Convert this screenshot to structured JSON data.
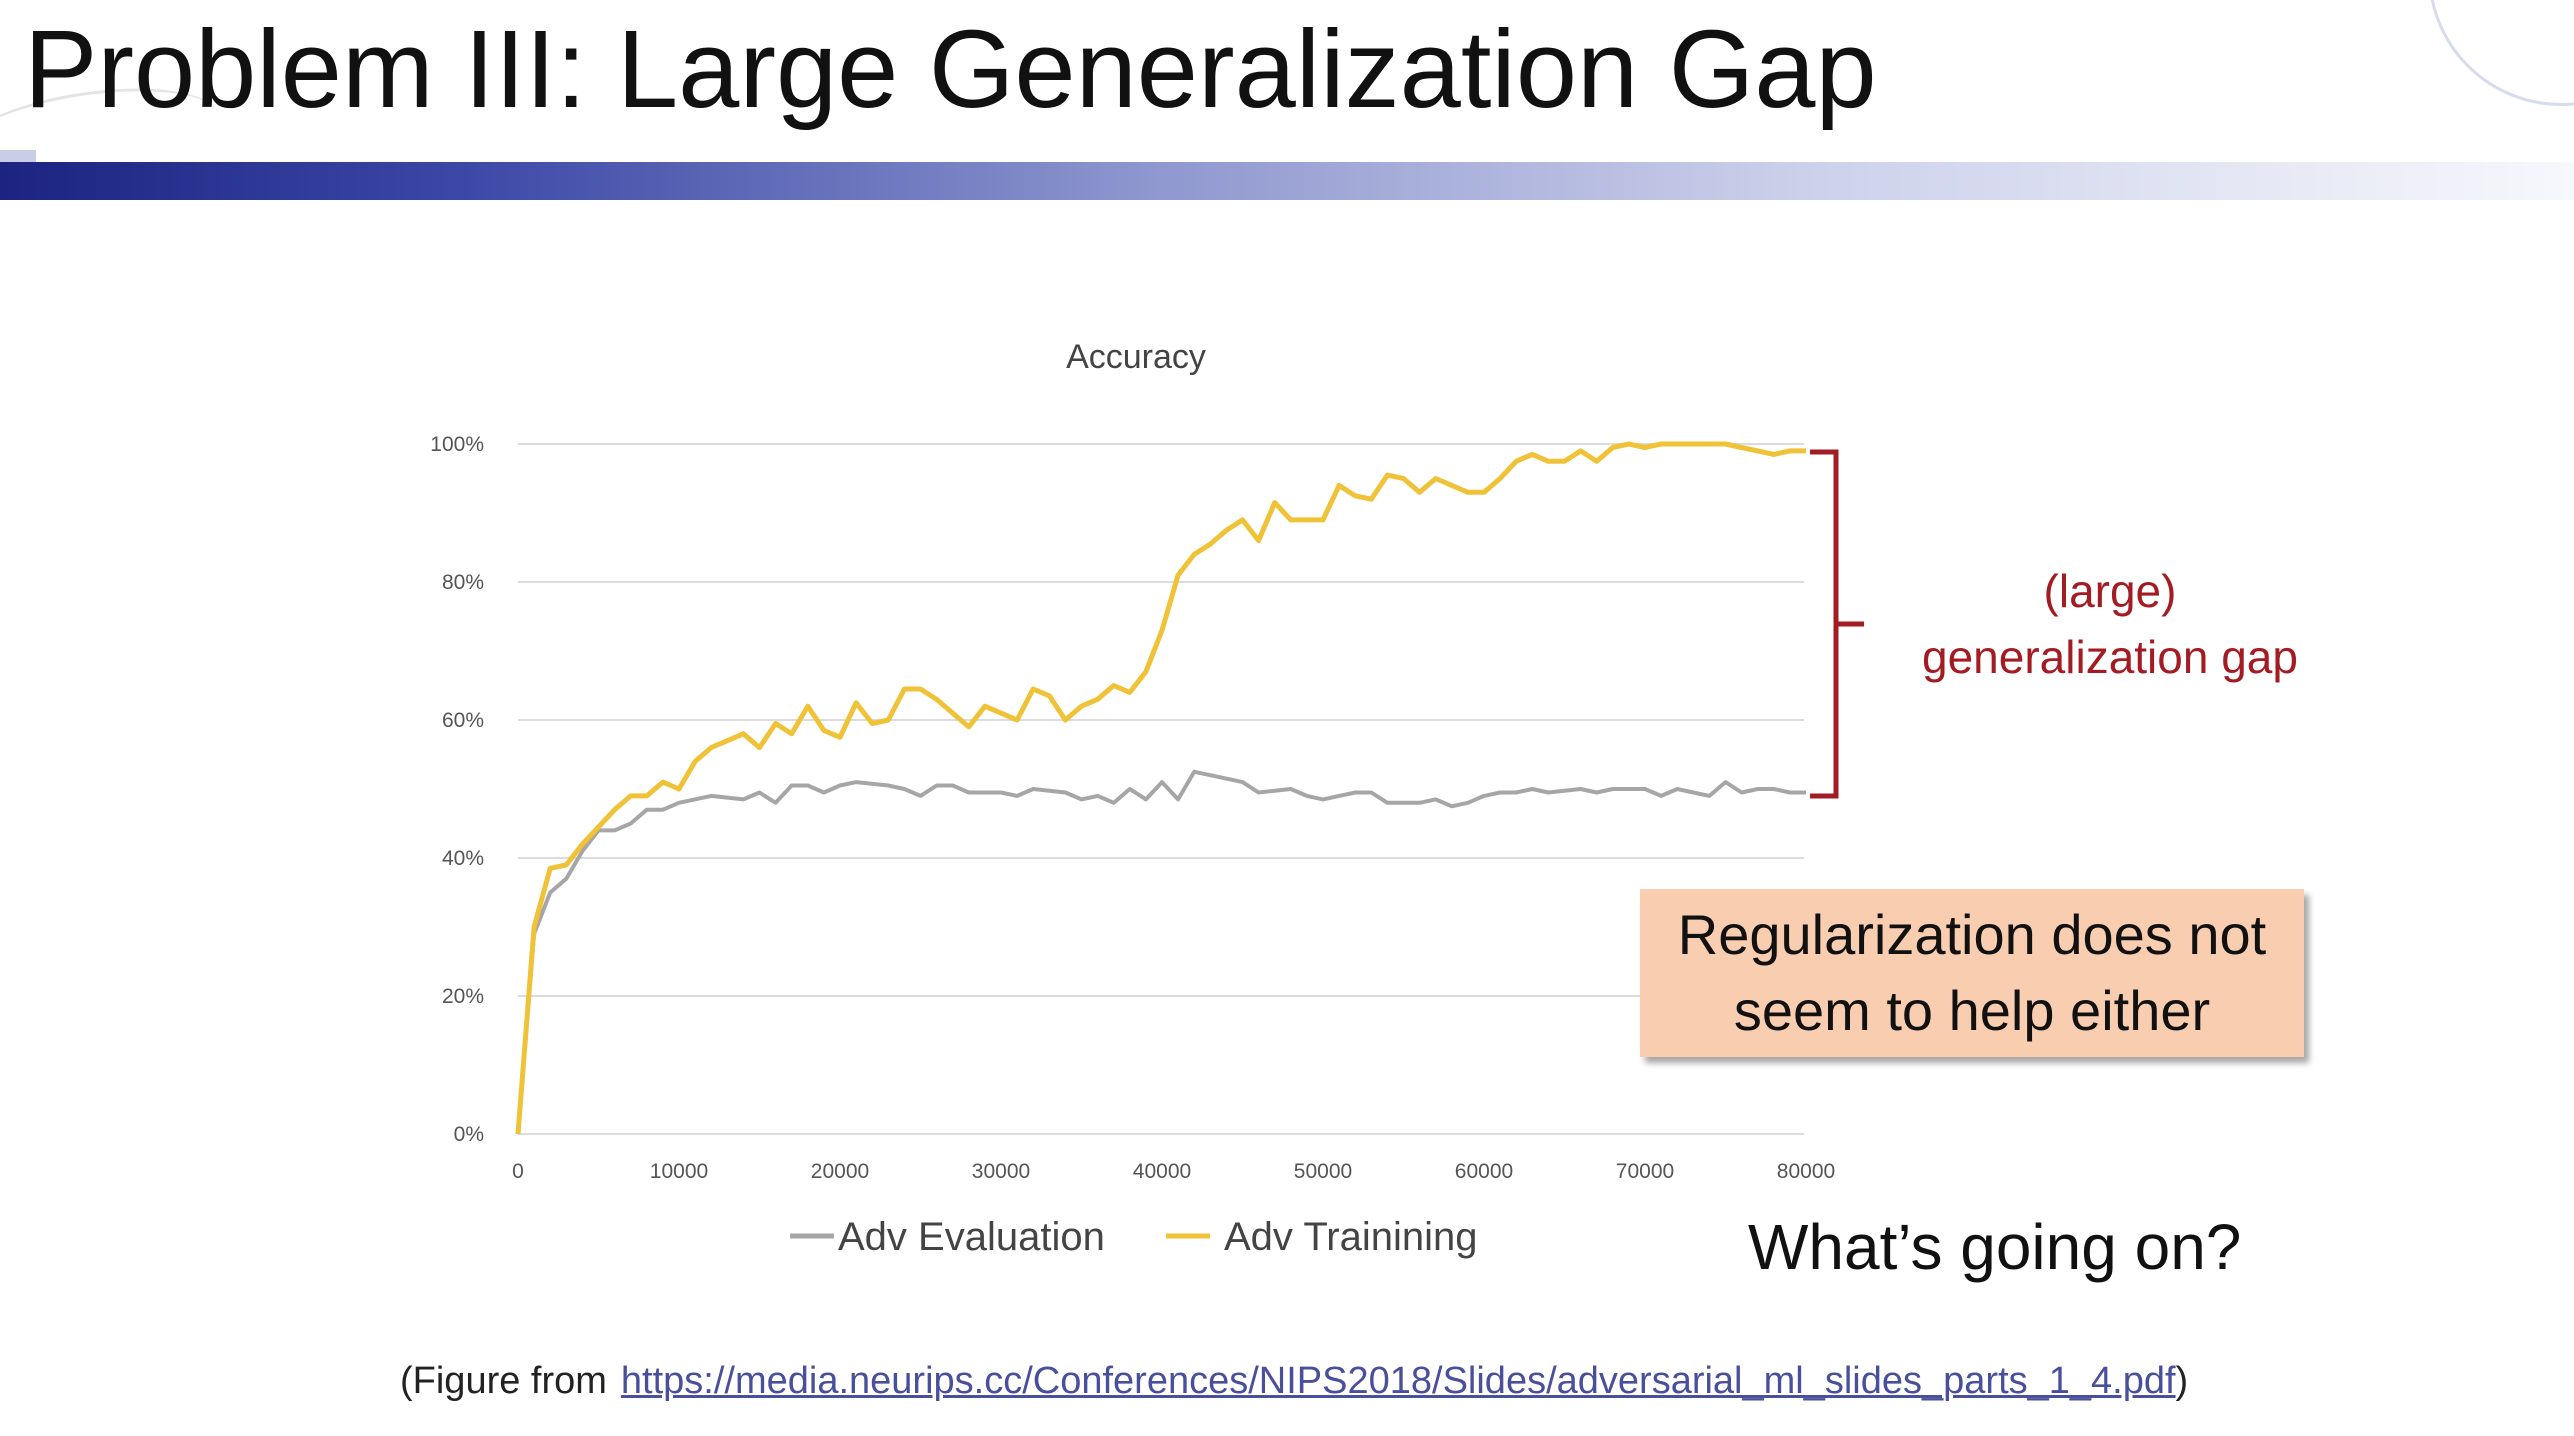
{
  "slide": {
    "title": "Problem III: Large Generalization Gap",
    "annotation_line1": "(large)",
    "annotation_line2": "generalization gap",
    "callout_line1": "Regularization does not",
    "callout_line2": "seem to help either",
    "question": "What’s going on?",
    "source_prefix": "(Figure from",
    "source_url": "https://media.neurips.cc/Conferences/NIPS2018/Slides/adversarial_ml_slides_parts_1_4.pdf",
    "source_suffix": ")",
    "colors": {
      "title_bar": "#1c2380",
      "annotation": "#a31c24",
      "callout_bg": "#f9cdb0"
    }
  },
  "chart_data": {
    "type": "line",
    "title": "Accuracy",
    "xlabel": "",
    "ylabel": "",
    "xlim": [
      0,
      80000
    ],
    "ylim": [
      0,
      100
    ],
    "x_ticks": [
      0,
      10000,
      20000,
      30000,
      40000,
      50000,
      60000,
      70000,
      80000
    ],
    "y_ticks": [
      "0%",
      "20%",
      "40%",
      "60%",
      "80%",
      "100%"
    ],
    "grid": true,
    "legend": "bottom",
    "series": [
      {
        "name": "Adv Evaluation",
        "color": "#a6a6a6",
        "points": [
          [
            0,
            0
          ],
          [
            1000,
            29
          ],
          [
            2000,
            35
          ],
          [
            3000,
            37
          ],
          [
            4000,
            41
          ],
          [
            5000,
            44
          ],
          [
            6000,
            44
          ],
          [
            7000,
            45
          ],
          [
            8000,
            47
          ],
          [
            9000,
            47
          ],
          [
            10000,
            48
          ],
          [
            12000,
            49
          ],
          [
            14000,
            48.5
          ],
          [
            15000,
            49.5
          ],
          [
            16000,
            48
          ],
          [
            17000,
            50.5
          ],
          [
            18000,
            50.5
          ],
          [
            19000,
            49.5
          ],
          [
            20000,
            50.5
          ],
          [
            21000,
            51
          ],
          [
            23000,
            50.5
          ],
          [
            24000,
            50
          ],
          [
            25000,
            49
          ],
          [
            26000,
            50.5
          ],
          [
            27000,
            50.5
          ],
          [
            28000,
            49.5
          ],
          [
            30000,
            49.5
          ],
          [
            31000,
            49
          ],
          [
            32000,
            50
          ],
          [
            34000,
            49.5
          ],
          [
            35000,
            48.5
          ],
          [
            36000,
            49
          ],
          [
            37000,
            48
          ],
          [
            38000,
            50
          ],
          [
            39000,
            48.5
          ],
          [
            40000,
            51
          ],
          [
            41000,
            48.5
          ],
          [
            42000,
            52.5
          ],
          [
            43000,
            52
          ],
          [
            45000,
            51
          ],
          [
            46000,
            49.5
          ],
          [
            48000,
            50
          ],
          [
            49000,
            49
          ],
          [
            50000,
            48.5
          ],
          [
            51000,
            49
          ],
          [
            52000,
            49.5
          ],
          [
            53000,
            49.5
          ],
          [
            54000,
            48
          ],
          [
            56000,
            48
          ],
          [
            57000,
            48.5
          ],
          [
            58000,
            47.5
          ],
          [
            59000,
            48
          ],
          [
            60000,
            49
          ],
          [
            61000,
            49.5
          ],
          [
            62000,
            49.5
          ],
          [
            63000,
            50
          ],
          [
            64000,
            49.5
          ],
          [
            66000,
            50
          ],
          [
            67000,
            49.5
          ],
          [
            68000,
            50
          ],
          [
            70000,
            50
          ],
          [
            71000,
            49
          ],
          [
            72000,
            50
          ],
          [
            73000,
            49.5
          ],
          [
            74000,
            49
          ],
          [
            75000,
            51
          ],
          [
            76000,
            49.5
          ],
          [
            77000,
            50
          ],
          [
            78000,
            50
          ],
          [
            79000,
            49.5
          ],
          [
            80000,
            49.5
          ]
        ]
      },
      {
        "name": "Adv Trainining",
        "color": "#f0c237",
        "points": [
          [
            0,
            0
          ],
          [
            1000,
            30
          ],
          [
            2000,
            38.5
          ],
          [
            3000,
            39
          ],
          [
            4000,
            42
          ],
          [
            5000,
            44.5
          ],
          [
            6000,
            47
          ],
          [
            7000,
            49
          ],
          [
            8000,
            49
          ],
          [
            9000,
            51
          ],
          [
            10000,
            50
          ],
          [
            11000,
            54
          ],
          [
            12000,
            56
          ],
          [
            13000,
            57
          ],
          [
            14000,
            58
          ],
          [
            15000,
            56
          ],
          [
            16000,
            59.5
          ],
          [
            17000,
            58
          ],
          [
            18000,
            62
          ],
          [
            19000,
            58.5
          ],
          [
            20000,
            57.5
          ],
          [
            21000,
            62.5
          ],
          [
            22000,
            59.5
          ],
          [
            23000,
            60
          ],
          [
            24000,
            64.5
          ],
          [
            25000,
            64.5
          ],
          [
            26000,
            63
          ],
          [
            27000,
            61
          ],
          [
            28000,
            59
          ],
          [
            29000,
            62
          ],
          [
            30000,
            61
          ],
          [
            31000,
            60
          ],
          [
            32000,
            64.5
          ],
          [
            33000,
            63.5
          ],
          [
            34000,
            60
          ],
          [
            35000,
            62
          ],
          [
            36000,
            63
          ],
          [
            37000,
            65
          ],
          [
            38000,
            64
          ],
          [
            39000,
            67
          ],
          [
            40000,
            73
          ],
          [
            41000,
            81
          ],
          [
            42000,
            84
          ],
          [
            43000,
            85.5
          ],
          [
            44000,
            87.5
          ],
          [
            45000,
            89
          ],
          [
            46000,
            86
          ],
          [
            47000,
            91.5
          ],
          [
            48000,
            89
          ],
          [
            49000,
            89
          ],
          [
            50000,
            89
          ],
          [
            51000,
            94
          ],
          [
            52000,
            92.5
          ],
          [
            53000,
            92
          ],
          [
            54000,
            95.5
          ],
          [
            55000,
            95
          ],
          [
            56000,
            93
          ],
          [
            57000,
            95
          ],
          [
            58000,
            94
          ],
          [
            59000,
            93
          ],
          [
            60000,
            93
          ],
          [
            61000,
            95
          ],
          [
            62000,
            97.5
          ],
          [
            63000,
            98.5
          ],
          [
            64000,
            97.5
          ],
          [
            65000,
            97.5
          ],
          [
            66000,
            99
          ],
          [
            67000,
            97.5
          ],
          [
            68000,
            99.5
          ],
          [
            69000,
            100
          ],
          [
            70000,
            99.5
          ],
          [
            71000,
            100
          ],
          [
            73000,
            100
          ],
          [
            75000,
            100
          ],
          [
            76000,
            99.5
          ],
          [
            77000,
            99
          ],
          [
            78000,
            98.5
          ],
          [
            79000,
            99
          ],
          [
            80000,
            99
          ]
        ]
      }
    ]
  }
}
